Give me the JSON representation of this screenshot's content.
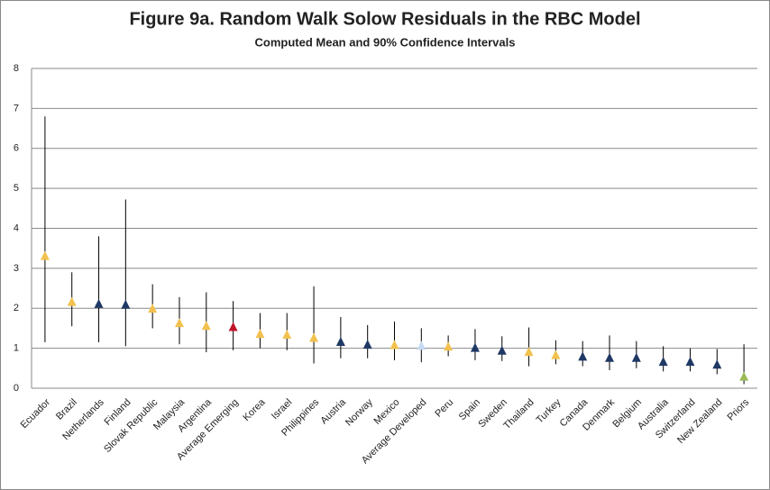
{
  "chart_data": {
    "type": "errorbar",
    "title": "Figure 9a. Random Walk Solow Residuals in the RBC Model",
    "subtitle": "Computed Mean and 90% Confidence Intervals",
    "categories": [
      "Ecuador",
      "Brazil",
      "Netherlands",
      "Finland",
      "Slovak Republic",
      "Malaysia",
      "Argentina",
      "Average Emerging",
      "Korea",
      "Israel",
      "Philippines",
      "Austria",
      "Norway",
      "Mexico",
      "Average Developed",
      "Peru",
      "Spain",
      "Sweden",
      "Thailand",
      "Turkey",
      "Canada",
      "Denmark",
      "Belgium",
      "Australia",
      "Switzerland",
      "New Zealand",
      "Priors"
    ],
    "values": [
      3.3,
      2.15,
      2.1,
      2.08,
      1.98,
      1.62,
      1.55,
      1.52,
      1.35,
      1.33,
      1.25,
      1.15,
      1.08,
      1.07,
      1.05,
      1.03,
      1.0,
      0.93,
      0.9,
      0.82,
      0.78,
      0.75,
      0.75,
      0.65,
      0.65,
      0.58,
      0.28
    ],
    "lower": [
      1.15,
      1.55,
      1.15,
      1.05,
      1.5,
      1.1,
      0.9,
      0.95,
      1.0,
      0.95,
      0.62,
      0.75,
      0.75,
      0.7,
      0.65,
      0.8,
      0.7,
      0.68,
      0.55,
      0.6,
      0.55,
      0.45,
      0.5,
      0.42,
      0.42,
      0.35,
      0.1
    ],
    "upper": [
      6.8,
      2.9,
      3.8,
      4.72,
      2.6,
      2.28,
      2.4,
      2.18,
      1.88,
      1.88,
      2.55,
      1.78,
      1.58,
      1.67,
      1.5,
      1.32,
      1.48,
      1.3,
      1.52,
      1.2,
      1.18,
      1.32,
      1.18,
      1.05,
      1.0,
      0.98,
      1.1
    ],
    "colors": [
      "#f2c14e",
      "#f2c14e",
      "#1f3864",
      "#1f3864",
      "#f2c14e",
      "#f2c14e",
      "#f2c14e",
      "#c0142a",
      "#f2c14e",
      "#f2c14e",
      "#f2c14e",
      "#1f3864",
      "#1f3864",
      "#f2c14e",
      "#c5d9f1",
      "#f2c14e",
      "#1f3864",
      "#1f3864",
      "#f2c14e",
      "#f2c14e",
      "#1f3864",
      "#1f3864",
      "#1f3864",
      "#1f3864",
      "#1f3864",
      "#1f3864",
      "#9bbb59"
    ],
    "ylim": [
      0,
      8
    ],
    "yticks": [
      0,
      1,
      2,
      3,
      4,
      5,
      6,
      7,
      8
    ],
    "grid": true
  }
}
